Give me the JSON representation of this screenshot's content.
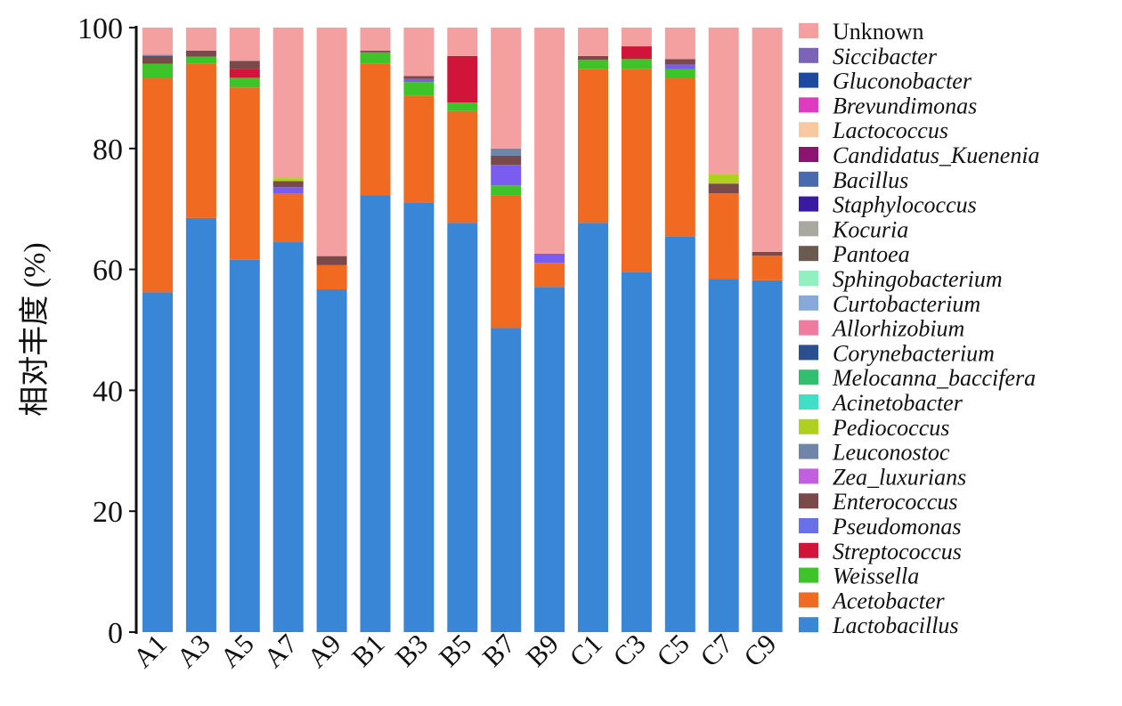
{
  "chart_data": {
    "type": "bar",
    "stacked": true,
    "title": "",
    "xlabel": "",
    "ylabel": "相对丰度 (%)",
    "ylim": [
      0,
      100
    ],
    "yticks": [
      "0",
      "20",
      "40",
      "60",
      "80",
      "100"
    ],
    "grid": false,
    "legend_position": "right",
    "categories": [
      "A1",
      "A3",
      "A5",
      "A7",
      "A9",
      "B1",
      "B3",
      "B5",
      "B7",
      "B9",
      "C1",
      "C3",
      "C5",
      "C7",
      "C9"
    ],
    "series": [
      {
        "name": "Lactobacillus",
        "color": "#3a86d6",
        "values": [
          56.2,
          68.5,
          61.6,
          64.5,
          56.7,
          72.3,
          71.1,
          67.7,
          50.3,
          57.1,
          67.7,
          59.6,
          65.5,
          58.4,
          58.2
        ]
      },
      {
        "name": "Acetobacter",
        "color": "#f06a22",
        "values": [
          35.4,
          25.5,
          28.5,
          8.1,
          4.0,
          21.7,
          17.6,
          18.5,
          22.0,
          4.0,
          25.4,
          33.6,
          26.1,
          14.2,
          4.1
        ]
      },
      {
        "name": "Weissella",
        "color": "#3ec428",
        "values": [
          2.4,
          1.2,
          1.6,
          0,
          0,
          1.9,
          2.3,
          1.4,
          1.6,
          0,
          1.6,
          1.6,
          1.5,
          0,
          0
        ]
      },
      {
        "name": "Streptococcus",
        "color": "#d0143a",
        "values": [
          0,
          0,
          1.5,
          0,
          0,
          0,
          0,
          7.7,
          0,
          0,
          0,
          2.1,
          0,
          0,
          0
        ]
      },
      {
        "name": "Pseudomonas",
        "color": "#7a5cf0",
        "values": [
          0,
          0,
          0,
          1.0,
          0,
          0,
          0.5,
          0,
          3.4,
          1.5,
          0,
          0,
          0.8,
          0,
          0
        ]
      },
      {
        "name": "Enterococcus",
        "color": "#7a4a4a",
        "values": [
          1.3,
          1.0,
          1.3,
          1.0,
          1.5,
          0.3,
          0.5,
          0,
          1.5,
          0,
          0.6,
          0,
          0.9,
          1.6,
          0.6
        ]
      },
      {
        "name": "Pediococcus",
        "color": "#b0d020",
        "values": [
          0,
          0,
          0,
          0.5,
          0,
          0,
          0,
          0,
          0,
          0,
          0,
          0,
          0,
          1.6,
          0
        ]
      },
      {
        "name": "Leuconostoc",
        "color": "#6f86a8",
        "values": [
          0.2,
          0,
          0,
          0,
          0,
          0,
          0,
          0,
          1.2,
          0,
          0,
          0,
          0,
          0,
          0
        ]
      },
      {
        "name": "Unknown",
        "color": "#f4a0a0",
        "values": [
          4.5,
          3.8,
          5.5,
          24.9,
          37.8,
          3.8,
          8.0,
          4.7,
          20.0,
          37.4,
          4.7,
          3.1,
          5.2,
          24.2,
          37.1
        ]
      }
    ],
    "legend": [
      {
        "name": "Unknown",
        "color": "#f4a0a0",
        "italic": false
      },
      {
        "name": "Siccibacter",
        "color": "#7b64b8",
        "italic": true
      },
      {
        "name": "Gluconobacter",
        "color": "#1d4aa0",
        "italic": true
      },
      {
        "name": "Brevundimonas",
        "color": "#e03ac0",
        "italic": true
      },
      {
        "name": "Lactococcus",
        "color": "#f8c8a0",
        "italic": true
      },
      {
        "name": "Candidatus_Kuenenia",
        "color": "#8a1470",
        "italic": true
      },
      {
        "name": "Bacillus",
        "color": "#4a6ab0",
        "italic": true
      },
      {
        "name": "Staphylococcus",
        "color": "#3a1aa0",
        "italic": true
      },
      {
        "name": "Kocuria",
        "color": "#a8a8a0",
        "italic": true
      },
      {
        "name": "Pantoea",
        "color": "#6a5a50",
        "italic": true
      },
      {
        "name": "Sphingobacterium",
        "color": "#90f0c0",
        "italic": true
      },
      {
        "name": "Curtobacterium",
        "color": "#88a8d8",
        "italic": true
      },
      {
        "name": "Allorhizobium",
        "color": "#f07aa0",
        "italic": true
      },
      {
        "name": "Corynebacterium",
        "color": "#2a5090",
        "italic": true
      },
      {
        "name": "Melocanna_baccifera",
        "color": "#30c070",
        "italic": true
      },
      {
        "name": "Acinetobacter",
        "color": "#40e0c8",
        "italic": true
      },
      {
        "name": "Pediococcus",
        "color": "#b0d020",
        "italic": true
      },
      {
        "name": "Leuconostoc",
        "color": "#6f86a8",
        "italic": true
      },
      {
        "name": "Zea_luxurians",
        "color": "#c060e0",
        "italic": true
      },
      {
        "name": "Enterococcus",
        "color": "#7a4a4a",
        "italic": true
      },
      {
        "name": "Pseudomonas",
        "color": "#6a70e8",
        "italic": true
      },
      {
        "name": "Streptococcus",
        "color": "#d0143a",
        "italic": true
      },
      {
        "name": "Weissella",
        "color": "#3ec428",
        "italic": true
      },
      {
        "name": "Acetobacter",
        "color": "#f06a22",
        "italic": true
      },
      {
        "name": "Lactobacillus",
        "color": "#3a86d6",
        "italic": true
      }
    ]
  }
}
